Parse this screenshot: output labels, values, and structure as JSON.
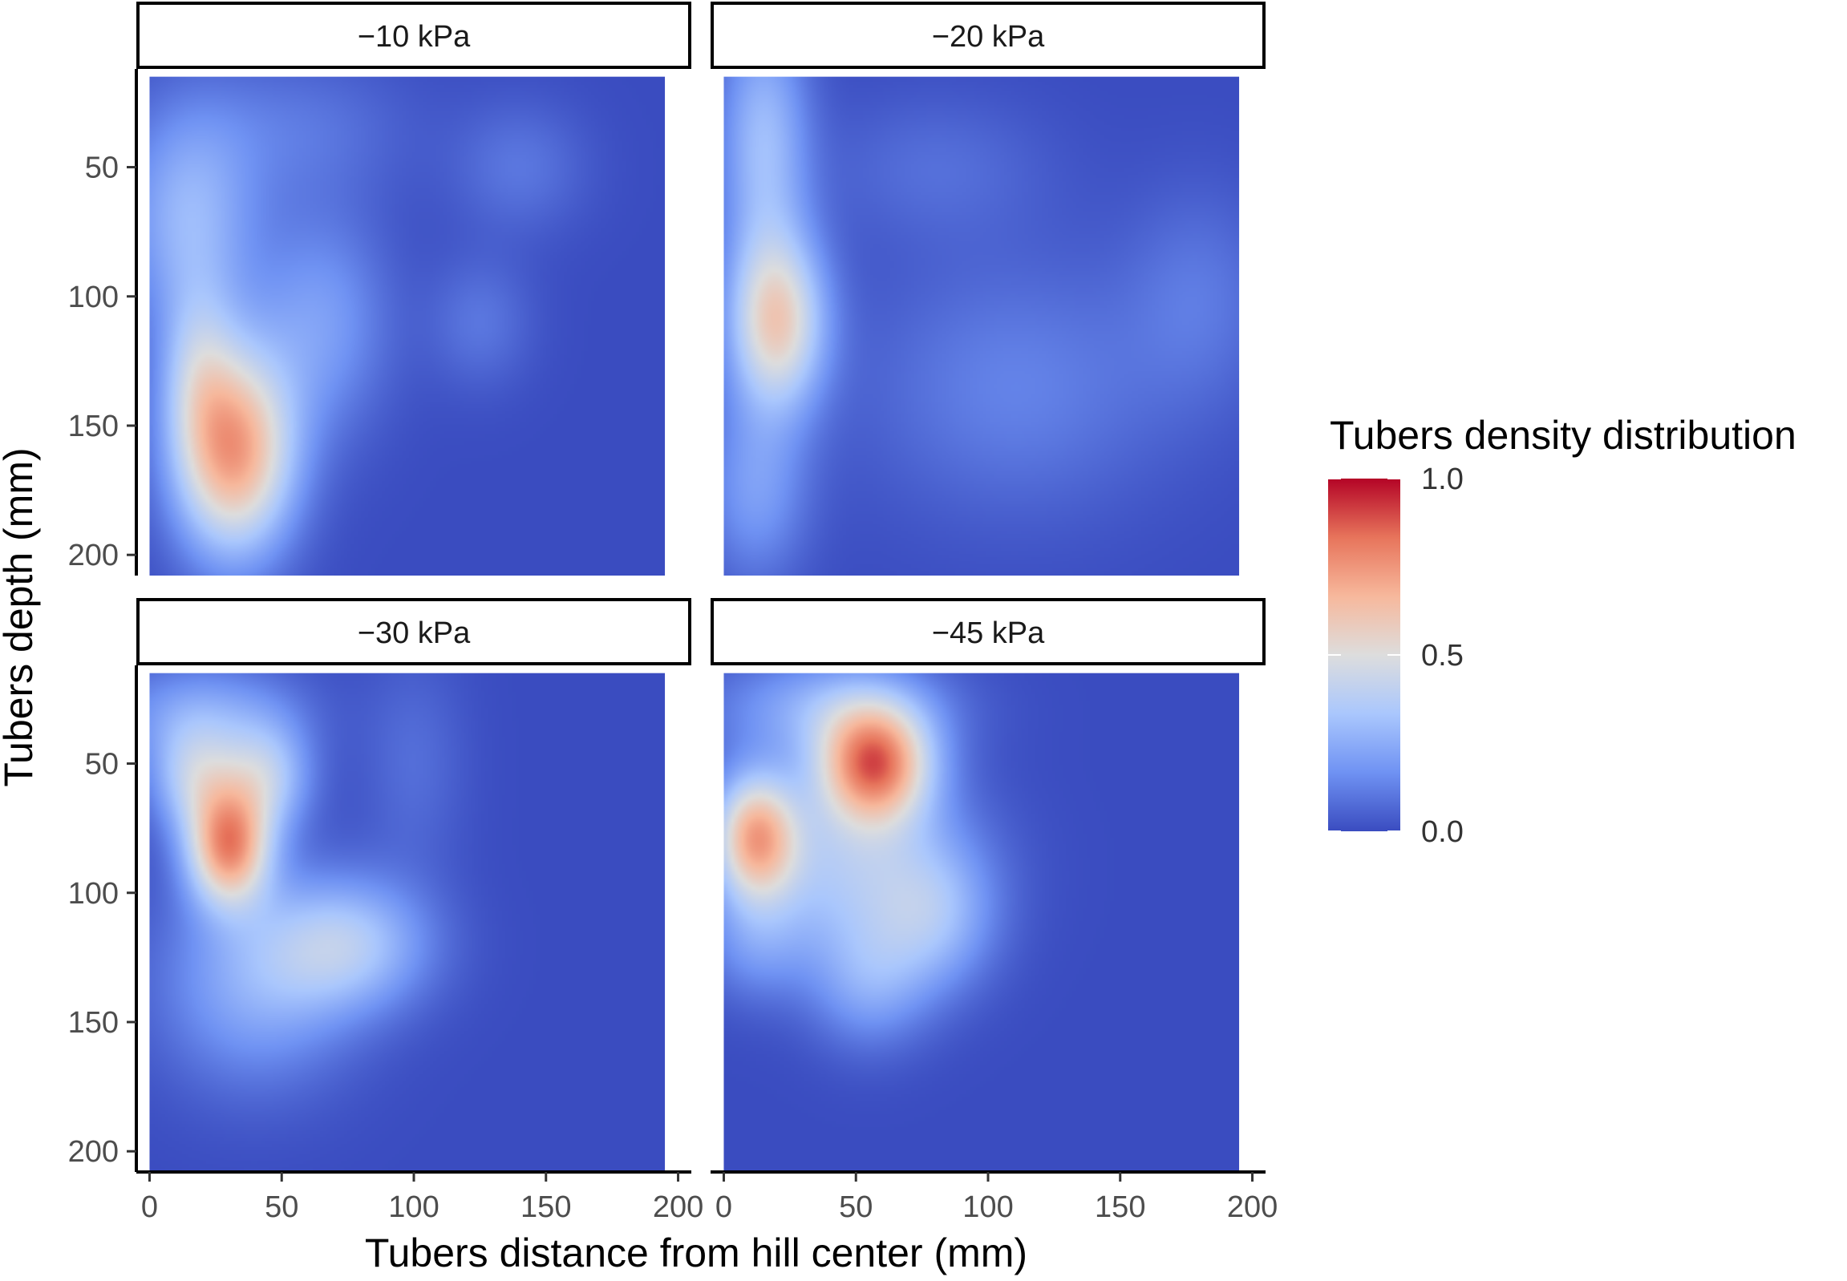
{
  "chart_data": {
    "type": "heatmap",
    "title": "",
    "xlabel": "Tubers distance from hill center (mm)",
    "ylabel": "Tubers depth (mm)",
    "xlim": [
      -5,
      205
    ],
    "ylim": [
      208,
      12
    ],
    "y_reversed": true,
    "x_ticks": [
      0,
      50,
      100,
      150,
      200
    ],
    "y_ticks": [
      50,
      100,
      150,
      200
    ],
    "x_tick_labels": [
      "0",
      "50",
      "100",
      "150",
      "200"
    ],
    "y_tick_labels": [
      "50",
      "100",
      "150",
      "200"
    ],
    "x_range_data": [
      0,
      195
    ],
    "y_range_data": [
      15,
      208
    ],
    "legend": {
      "title": "Tubers density distribution",
      "position": "right",
      "limits": [
        0.0,
        1.0
      ],
      "breaks": [
        "0.0",
        "0.5",
        "1.0"
      ],
      "colors": [
        "#3a4cc0",
        "#6f92f3",
        "#aac7fd",
        "#dddddd",
        "#f7b89c",
        "#e7745b",
        "#b40426"
      ]
    },
    "grid": false,
    "facets": [
      {
        "label": "−10 kPa",
        "blobs": [
          {
            "x": 32,
            "y": 160,
            "sx": 16,
            "sy": 28,
            "w": 0.72
          },
          {
            "x": 18,
            "y": 128,
            "sx": 10,
            "sy": 24,
            "w": 0.22
          },
          {
            "x": 15,
            "y": 70,
            "sx": 18,
            "sy": 30,
            "w": 0.28
          },
          {
            "x": 65,
            "y": 110,
            "sx": 18,
            "sy": 30,
            "w": 0.2
          },
          {
            "x": 55,
            "y": 35,
            "sx": 30,
            "sy": 20,
            "w": 0.1
          },
          {
            "x": 140,
            "y": 50,
            "sx": 18,
            "sy": 18,
            "w": 0.1
          },
          {
            "x": 125,
            "y": 110,
            "sx": 14,
            "sy": 18,
            "w": 0.1
          }
        ]
      },
      {
        "label": "−20 kPa",
        "blobs": [
          {
            "x": 20,
            "y": 110,
            "sx": 13,
            "sy": 24,
            "w": 0.56
          },
          {
            "x": 15,
            "y": 40,
            "sx": 12,
            "sy": 35,
            "w": 0.3
          },
          {
            "x": 12,
            "y": 175,
            "sx": 14,
            "sy": 25,
            "w": 0.2
          },
          {
            "x": 110,
            "y": 135,
            "sx": 40,
            "sy": 35,
            "w": 0.13
          },
          {
            "x": 180,
            "y": 100,
            "sx": 20,
            "sy": 30,
            "w": 0.1
          },
          {
            "x": 80,
            "y": 50,
            "sx": 30,
            "sy": 20,
            "w": 0.08
          }
        ]
      },
      {
        "label": "−30 kPa",
        "blobs": [
          {
            "x": 30,
            "y": 82,
            "sx": 11,
            "sy": 16,
            "w": 0.72
          },
          {
            "x": 17,
            "y": 55,
            "sx": 12,
            "sy": 15,
            "w": 0.34
          },
          {
            "x": 44,
            "y": 55,
            "sx": 12,
            "sy": 15,
            "w": 0.34
          },
          {
            "x": 20,
            "y": 30,
            "sx": 26,
            "sy": 14,
            "w": 0.2
          },
          {
            "x": 75,
            "y": 120,
            "sx": 22,
            "sy": 18,
            "w": 0.32
          },
          {
            "x": 40,
            "y": 135,
            "sx": 26,
            "sy": 28,
            "w": 0.24
          },
          {
            "x": 100,
            "y": 50,
            "sx": 14,
            "sy": 30,
            "w": 0.08
          }
        ]
      },
      {
        "label": "−45 kPa",
        "blobs": [
          {
            "x": 57,
            "y": 50,
            "sx": 15,
            "sy": 16,
            "w": 0.76
          },
          {
            "x": 12,
            "y": 78,
            "sx": 11,
            "sy": 17,
            "w": 0.6
          },
          {
            "x": 48,
            "y": 90,
            "sx": 30,
            "sy": 25,
            "w": 0.33
          },
          {
            "x": 40,
            "y": 28,
            "sx": 30,
            "sy": 14,
            "w": 0.24
          },
          {
            "x": 80,
            "y": 110,
            "sx": 16,
            "sy": 20,
            "w": 0.22
          },
          {
            "x": 55,
            "y": 135,
            "sx": 16,
            "sy": 18,
            "w": 0.2
          },
          {
            "x": 12,
            "y": 120,
            "sx": 14,
            "sy": 16,
            "w": 0.14
          }
        ]
      }
    ]
  }
}
